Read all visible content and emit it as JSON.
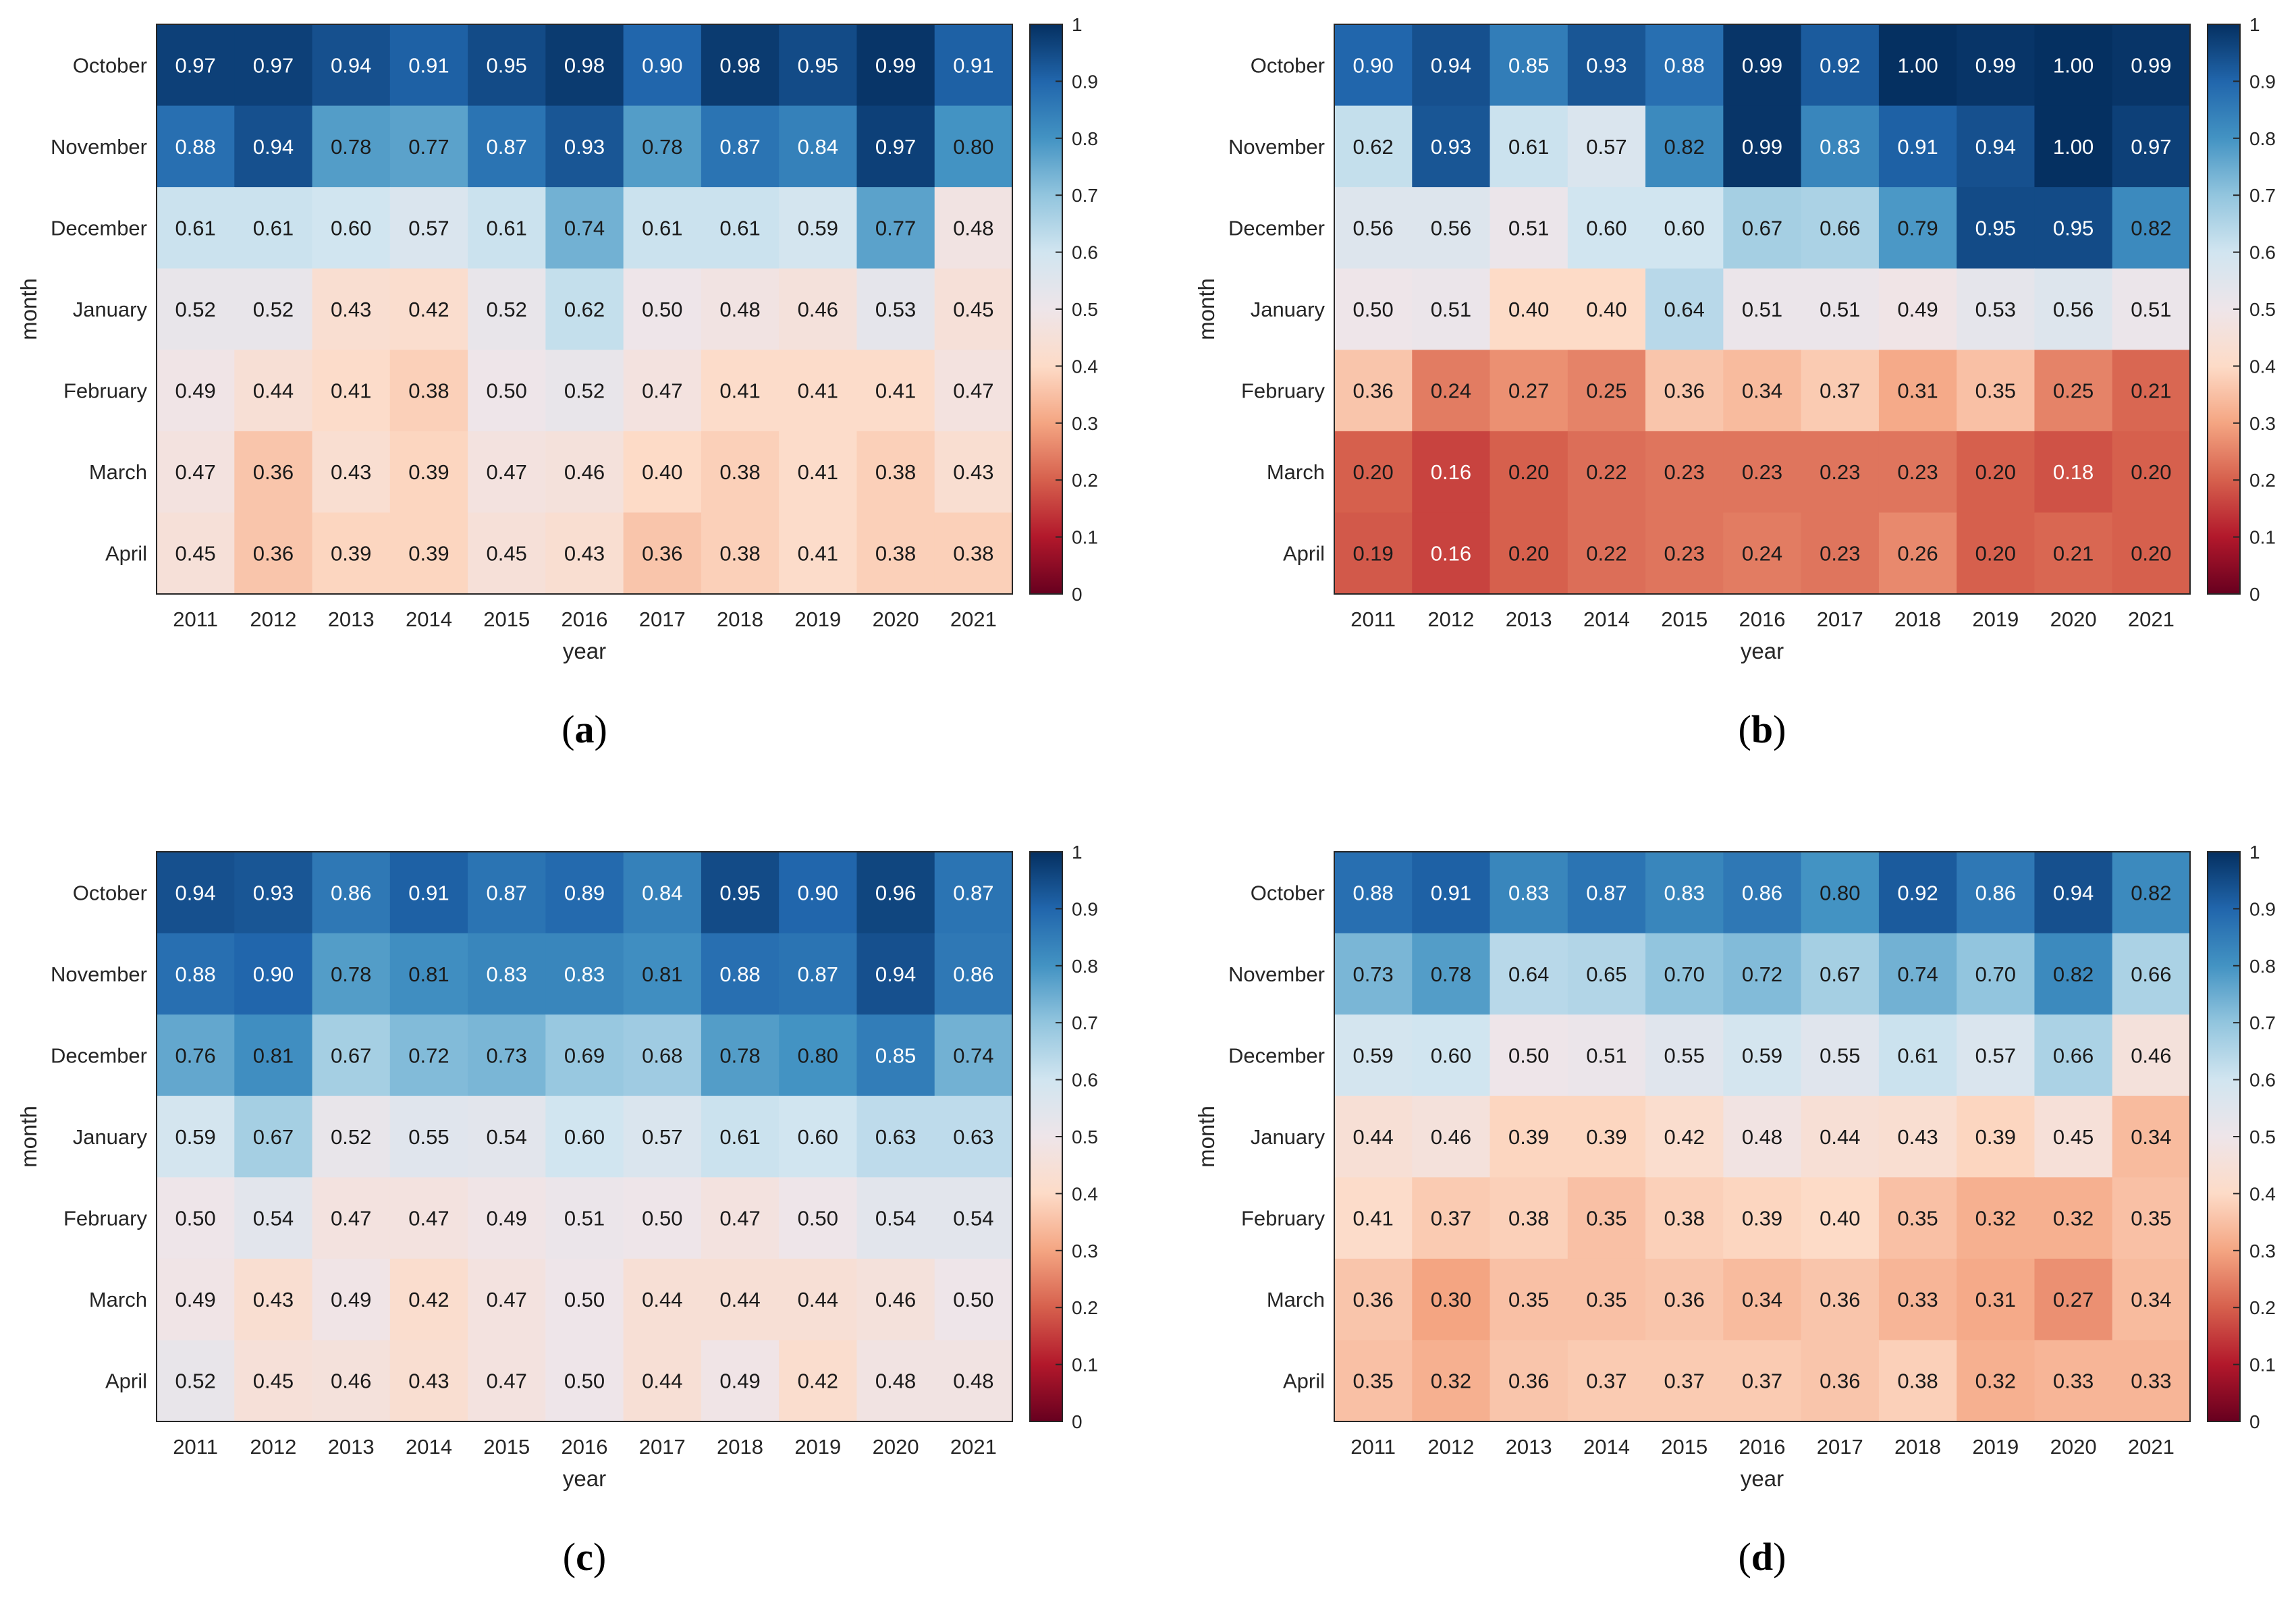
{
  "chart_data": [
    {
      "type": "heatmap",
      "panel_label": "a",
      "xlabel": "year",
      "ylabel": "month",
      "x": [
        "2011",
        "2012",
        "2013",
        "2014",
        "2015",
        "2016",
        "2017",
        "2018",
        "2019",
        "2020",
        "2021"
      ],
      "y": [
        "October",
        "November",
        "December",
        "January",
        "February",
        "March",
        "April"
      ],
      "values": [
        [
          0.97,
          0.97,
          0.94,
          0.91,
          0.95,
          0.98,
          0.9,
          0.98,
          0.95,
          0.99,
          0.91
        ],
        [
          0.88,
          0.94,
          0.78,
          0.77,
          0.87,
          0.93,
          0.78,
          0.87,
          0.84,
          0.97,
          0.8
        ],
        [
          0.61,
          0.61,
          0.6,
          0.57,
          0.61,
          0.74,
          0.61,
          0.61,
          0.59,
          0.77,
          0.48
        ],
        [
          0.52,
          0.52,
          0.43,
          0.42,
          0.52,
          0.62,
          0.5,
          0.48,
          0.46,
          0.53,
          0.45
        ],
        [
          0.49,
          0.44,
          0.41,
          0.38,
          0.5,
          0.52,
          0.47,
          0.41,
          0.41,
          0.41,
          0.47
        ],
        [
          0.47,
          0.36,
          0.43,
          0.39,
          0.47,
          0.46,
          0.4,
          0.38,
          0.41,
          0.38,
          0.43
        ],
        [
          0.45,
          0.36,
          0.39,
          0.39,
          0.45,
          0.43,
          0.36,
          0.38,
          0.41,
          0.38,
          0.38
        ]
      ],
      "colorbar": {
        "range": [
          0,
          1
        ],
        "ticks": [
          "0",
          "0.1",
          "0.2",
          "0.3",
          "0.4",
          "0.5",
          "0.6",
          "0.7",
          "0.8",
          "0.9",
          "1"
        ]
      }
    },
    {
      "type": "heatmap",
      "panel_label": "b",
      "xlabel": "year",
      "ylabel": "month",
      "x": [
        "2011",
        "2012",
        "2013",
        "2014",
        "2015",
        "2016",
        "2017",
        "2018",
        "2019",
        "2020",
        "2021"
      ],
      "y": [
        "October",
        "November",
        "December",
        "January",
        "February",
        "March",
        "April"
      ],
      "values": [
        [
          0.9,
          0.94,
          0.85,
          0.93,
          0.88,
          0.99,
          0.92,
          1.0,
          0.99,
          1.0,
          0.99
        ],
        [
          0.62,
          0.93,
          0.61,
          0.57,
          0.82,
          0.99,
          0.83,
          0.91,
          0.94,
          1.0,
          0.97
        ],
        [
          0.56,
          0.56,
          0.51,
          0.6,
          0.6,
          0.67,
          0.66,
          0.79,
          0.95,
          0.95,
          0.82
        ],
        [
          0.5,
          0.51,
          0.4,
          0.4,
          0.64,
          0.51,
          0.51,
          0.49,
          0.53,
          0.56,
          0.51
        ],
        [
          0.36,
          0.24,
          0.27,
          0.25,
          0.36,
          0.34,
          0.37,
          0.31,
          0.35,
          0.25,
          0.21
        ],
        [
          0.2,
          0.16,
          0.2,
          0.22,
          0.23,
          0.23,
          0.23,
          0.23,
          0.2,
          0.18,
          0.2
        ],
        [
          0.19,
          0.16,
          0.2,
          0.22,
          0.23,
          0.24,
          0.23,
          0.26,
          0.2,
          0.21,
          0.2
        ]
      ],
      "colorbar": {
        "range": [
          0,
          1
        ],
        "ticks": [
          "0",
          "0.1",
          "0.2",
          "0.3",
          "0.4",
          "0.5",
          "0.6",
          "0.7",
          "0.8",
          "0.9",
          "1"
        ]
      }
    },
    {
      "type": "heatmap",
      "panel_label": "c",
      "xlabel": "year",
      "ylabel": "month",
      "x": [
        "2011",
        "2012",
        "2013",
        "2014",
        "2015",
        "2016",
        "2017",
        "2018",
        "2019",
        "2020",
        "2021"
      ],
      "y": [
        "October",
        "November",
        "December",
        "January",
        "February",
        "March",
        "April"
      ],
      "values": [
        [
          0.94,
          0.93,
          0.86,
          0.91,
          0.87,
          0.89,
          0.84,
          0.95,
          0.9,
          0.96,
          0.87
        ],
        [
          0.88,
          0.9,
          0.78,
          0.81,
          0.83,
          0.83,
          0.81,
          0.88,
          0.87,
          0.94,
          0.86
        ],
        [
          0.76,
          0.81,
          0.67,
          0.72,
          0.73,
          0.69,
          0.68,
          0.78,
          0.8,
          0.85,
          0.74
        ],
        [
          0.59,
          0.67,
          0.52,
          0.55,
          0.54,
          0.6,
          0.57,
          0.61,
          0.6,
          0.63,
          0.63
        ],
        [
          0.5,
          0.54,
          0.47,
          0.47,
          0.49,
          0.51,
          0.5,
          0.47,
          0.5,
          0.54,
          0.54
        ],
        [
          0.49,
          0.43,
          0.49,
          0.42,
          0.47,
          0.5,
          0.44,
          0.44,
          0.44,
          0.46,
          0.5
        ],
        [
          0.52,
          0.45,
          0.46,
          0.43,
          0.47,
          0.5,
          0.44,
          0.49,
          0.42,
          0.48,
          0.48
        ]
      ],
      "colorbar": {
        "range": [
          0,
          1
        ],
        "ticks": [
          "0",
          "0.1",
          "0.2",
          "0.3",
          "0.4",
          "0.5",
          "0.6",
          "0.7",
          "0.8",
          "0.9",
          "1"
        ]
      }
    },
    {
      "type": "heatmap",
      "panel_label": "d",
      "xlabel": "year",
      "ylabel": "month",
      "x": [
        "2011",
        "2012",
        "2013",
        "2014",
        "2015",
        "2016",
        "2017",
        "2018",
        "2019",
        "2020",
        "2021"
      ],
      "y": [
        "October",
        "November",
        "December",
        "January",
        "February",
        "March",
        "April"
      ],
      "values": [
        [
          0.88,
          0.91,
          0.83,
          0.87,
          0.83,
          0.86,
          0.8,
          0.92,
          0.86,
          0.94,
          0.82
        ],
        [
          0.73,
          0.78,
          0.64,
          0.65,
          0.7,
          0.72,
          0.67,
          0.74,
          0.7,
          0.82,
          0.66
        ],
        [
          0.59,
          0.6,
          0.5,
          0.51,
          0.55,
          0.59,
          0.55,
          0.61,
          0.57,
          0.66,
          0.46
        ],
        [
          0.44,
          0.46,
          0.39,
          0.39,
          0.42,
          0.48,
          0.44,
          0.43,
          0.39,
          0.45,
          0.34
        ],
        [
          0.41,
          0.37,
          0.38,
          0.35,
          0.38,
          0.39,
          0.4,
          0.35,
          0.32,
          0.32,
          0.35
        ],
        [
          0.36,
          0.3,
          0.35,
          0.35,
          0.36,
          0.34,
          0.36,
          0.33,
          0.31,
          0.27,
          0.34
        ],
        [
          0.35,
          0.32,
          0.36,
          0.37,
          0.37,
          0.37,
          0.36,
          0.38,
          0.32,
          0.33,
          0.33
        ]
      ],
      "colorbar": {
        "range": [
          0,
          1
        ],
        "ticks": [
          "0",
          "0.1",
          "0.2",
          "0.3",
          "0.4",
          "0.5",
          "0.6",
          "0.7",
          "0.8",
          "0.9",
          "1"
        ]
      }
    }
  ],
  "colormap": [
    "#67001f",
    "#b2182b",
    "#d6604d",
    "#f4a582",
    "#fddbc7",
    "#eee5e9",
    "#d1e5f0",
    "#92c5de",
    "#4393c3",
    "#2166ac",
    "#053061"
  ]
}
